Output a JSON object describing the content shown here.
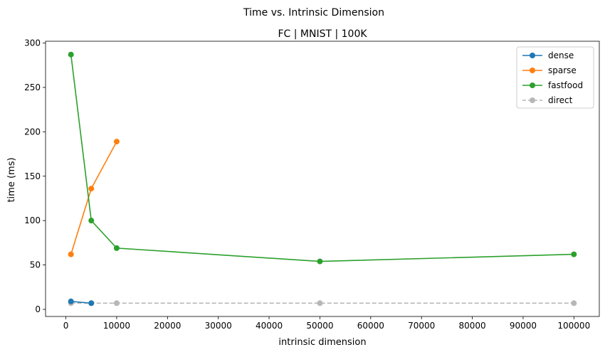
{
  "chart_data": {
    "type": "line",
    "suptitle": "Time vs. Intrinsic Dimension",
    "title": "FC | MNIST | 100K",
    "xlabel": "intrinsic dimension",
    "ylabel": "time (ms)",
    "xlim": [
      -4000,
      105000
    ],
    "ylim": [
      -8,
      302
    ],
    "xticks": [
      0,
      10000,
      20000,
      30000,
      40000,
      50000,
      60000,
      70000,
      80000,
      90000,
      100000
    ],
    "yticks": [
      0,
      50,
      100,
      150,
      200,
      250,
      300
    ],
    "grid": false,
    "legend_position": "top-right",
    "series": [
      {
        "name": "dense",
        "color": "#1f77b4",
        "linestyle": "solid",
        "marker": "circle",
        "x": [
          1000,
          5000
        ],
        "y": [
          9,
          7
        ]
      },
      {
        "name": "sparse",
        "color": "#ff7f0e",
        "linestyle": "solid",
        "marker": "circle",
        "x": [
          1000,
          5000,
          10000
        ],
        "y": [
          62,
          136,
          189
        ]
      },
      {
        "name": "fastfood",
        "color": "#2ca02c",
        "linestyle": "solid",
        "marker": "circle",
        "x": [
          1000,
          5000,
          10000,
          50000,
          100000
        ],
        "y": [
          287,
          100,
          69,
          54,
          62
        ]
      },
      {
        "name": "direct",
        "color": "#999999",
        "linestyle": "dashed",
        "marker": "circle",
        "alpha": 0.7,
        "x": [
          1000,
          5000,
          10000,
          50000,
          100000
        ],
        "y": [
          7,
          7,
          7,
          7,
          7
        ]
      }
    ]
  }
}
